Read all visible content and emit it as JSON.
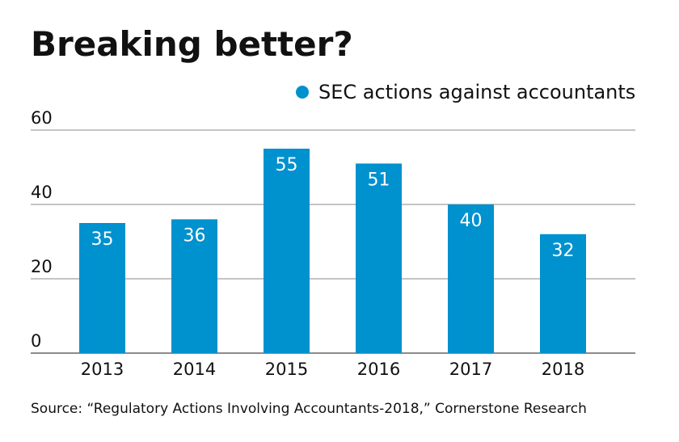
{
  "chart_data": {
    "type": "bar",
    "title": "Breaking better?",
    "categories": [
      "2013",
      "2014",
      "2015",
      "2016",
      "2017",
      "2018"
    ],
    "series": [
      {
        "name": "SEC actions against accountants",
        "values": [
          35,
          36,
          55,
          51,
          40,
          32
        ],
        "color": "#0091cf"
      }
    ],
    "yticks": [
      "0",
      "20",
      "40",
      "60"
    ],
    "ylim": [
      0,
      60
    ],
    "grid": true,
    "legend_position": "top-right",
    "source": "Source: “Regulatory Actions Involving Accountants-2018,” Cornerstone Research"
  }
}
